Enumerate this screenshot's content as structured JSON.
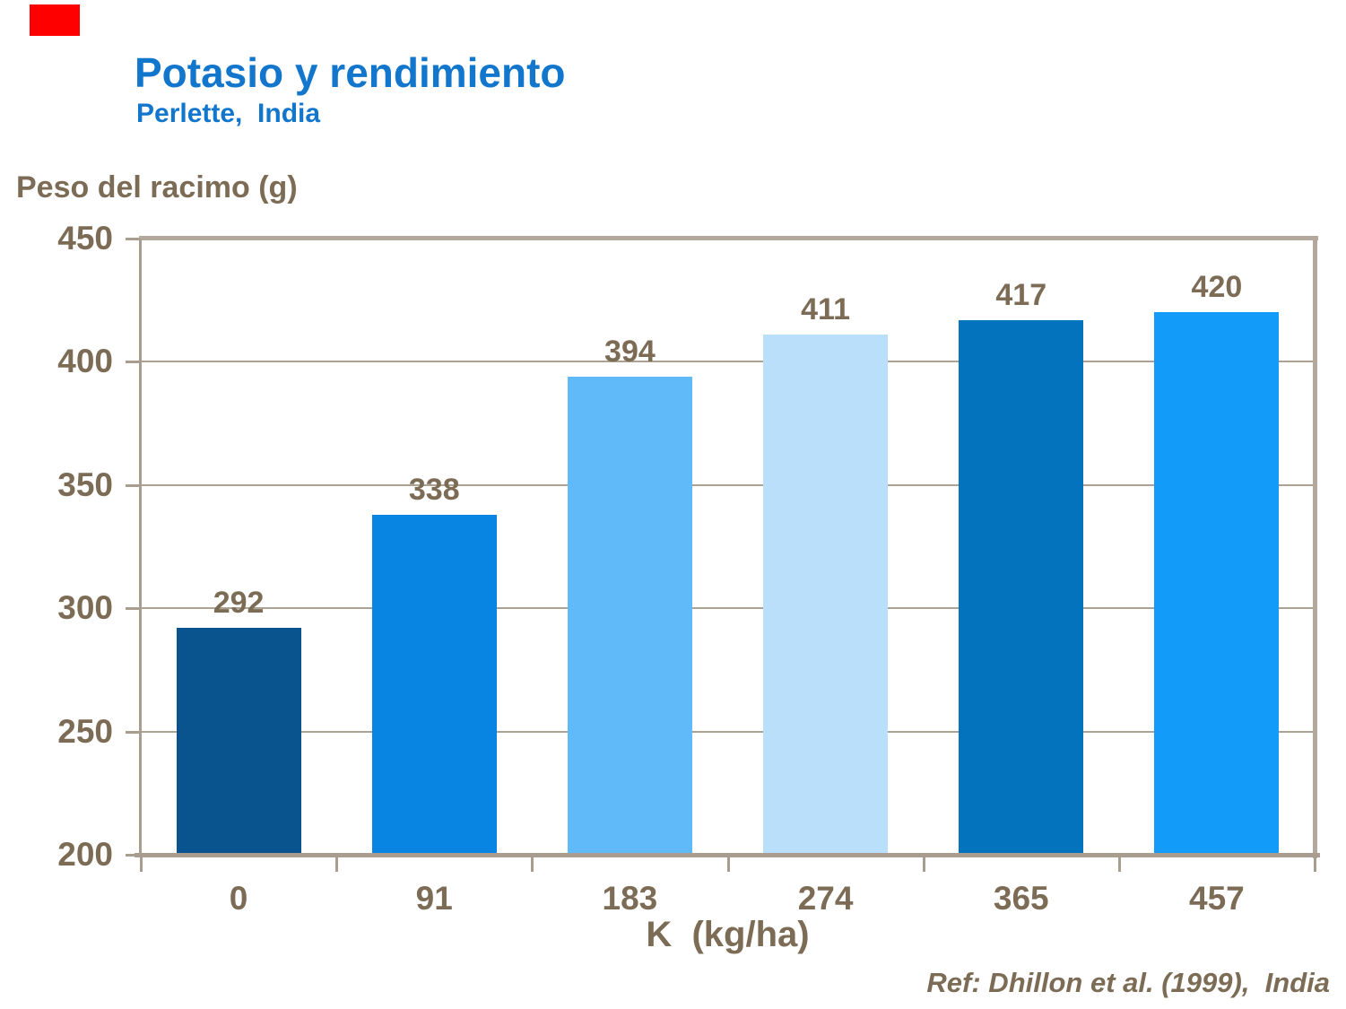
{
  "slide": {
    "title": "Potasio y rendimiento",
    "subtitle": "Perlette,  India",
    "reference": "Ref: Dhillon et al. (1999),  India",
    "colors": {
      "corner_mark": "#FF0000",
      "title_blue": "#1277CC",
      "text_brown": "#7D6C55",
      "axis_tan": "#A89D8F",
      "grid_tan": "#ACA294",
      "frame_tan": "#B3A89B"
    }
  },
  "chart_data": {
    "type": "bar",
    "title": "Potasio y rendimiento",
    "subtitle": "Perlette, India",
    "categories": [
      "0",
      "91",
      "183",
      "274",
      "365",
      "457"
    ],
    "values": [
      292,
      338,
      394,
      411,
      417,
      420
    ],
    "bar_colors": [
      "#09538F",
      "#0884E2",
      "#60B9F9",
      "#BADFFB",
      "#0473BE",
      "#129BF8"
    ],
    "xlabel": "K  (kg/ha)",
    "ylabel": "Peso del racimo (g)",
    "ylim": [
      200,
      450
    ],
    "yticks": [
      200,
      250,
      300,
      350,
      400,
      450
    ],
    "grid": true,
    "legend_position": "none",
    "data_labels": true,
    "reference": "Ref: Dhillon et al. (1999), India"
  }
}
